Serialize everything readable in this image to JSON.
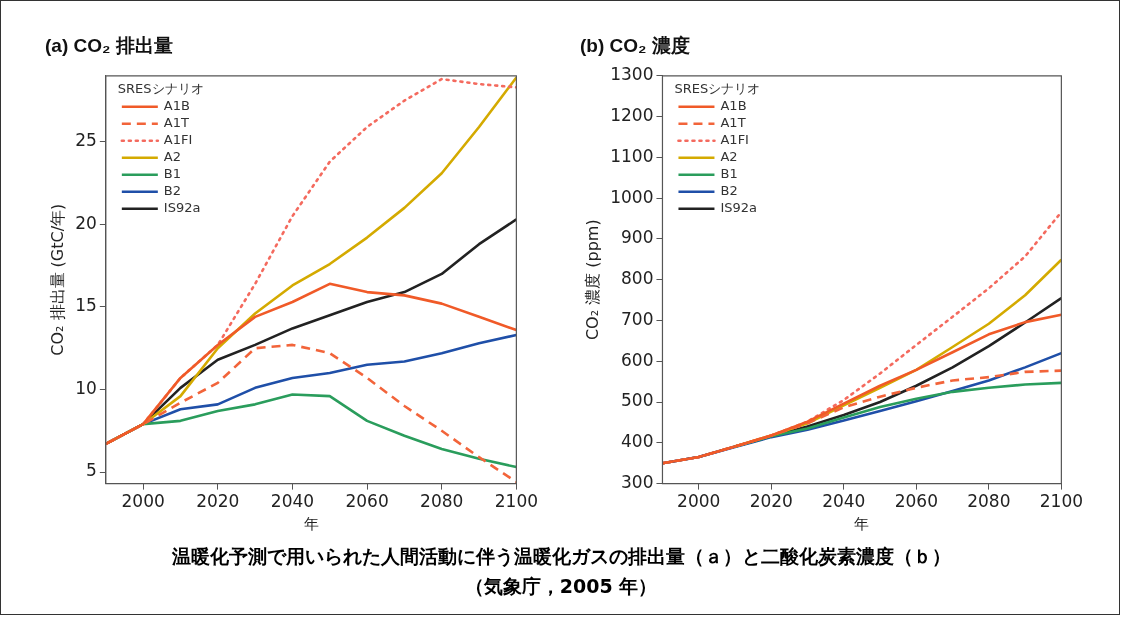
{
  "chart_data": [
    {
      "type": "line",
      "title": "(a) CO₂ 排出量",
      "xlabel": "年",
      "ylabel": "CO₂ 排出量 (GtC/年)",
      "legend_title": "SRESシナリオ",
      "legend": "top left",
      "grid": false,
      "marker": "none",
      "x": [
        1990,
        2000,
        2010,
        2020,
        2030,
        2040,
        2050,
        2060,
        2070,
        2080,
        2090,
        2100
      ],
      "xlim": [
        1990,
        2100
      ],
      "xticks": [
        2000,
        2020,
        2040,
        2060,
        2080,
        2100
      ],
      "ylim": [
        4.3,
        29
      ],
      "yticks": [
        5,
        10,
        15,
        20,
        25
      ],
      "series": [
        {
          "name": "A1B",
          "color": "#f05a28",
          "line_style": "solid",
          "values": [
            6.7,
            7.9,
            10.7,
            12.7,
            14.4,
            15.3,
            16.4,
            15.9,
            15.7,
            15.2,
            14.4,
            13.6
          ]
        },
        {
          "name": "A1T",
          "color": "#f2643a",
          "line_style": "dashed",
          "values": [
            6.7,
            7.9,
            9.2,
            10.4,
            12.5,
            12.7,
            12.2,
            10.7,
            9.0,
            7.5,
            5.9,
            4.4
          ]
        },
        {
          "name": "A1FI",
          "color": "#f46a5e",
          "line_style": "dotted",
          "values": [
            6.7,
            7.9,
            10.7,
            12.7,
            16.4,
            20.5,
            23.8,
            25.9,
            27.5,
            28.8,
            28.5,
            28.3
          ]
        },
        {
          "name": "A2",
          "color": "#d4aa00",
          "line_style": "solid",
          "values": [
            6.7,
            7.9,
            9.6,
            12.5,
            14.6,
            16.3,
            17.6,
            19.2,
            21.0,
            23.1,
            25.9,
            28.9
          ]
        },
        {
          "name": "B1",
          "color": "#2a9d5c",
          "line_style": "solid",
          "values": [
            6.7,
            7.9,
            8.1,
            8.7,
            9.1,
            9.7,
            9.6,
            8.1,
            7.2,
            6.4,
            5.8,
            5.3
          ]
        },
        {
          "name": "B2",
          "color": "#1f4fa8",
          "line_style": "solid",
          "values": [
            6.7,
            7.9,
            8.8,
            9.1,
            10.1,
            10.7,
            11.0,
            11.5,
            11.7,
            12.2,
            12.8,
            13.3
          ]
        },
        {
          "name": "IS92a",
          "color": "#222222",
          "line_style": "solid",
          "values": [
            6.7,
            7.9,
            10.1,
            11.8,
            12.7,
            13.7,
            14.5,
            15.3,
            15.9,
            17.0,
            18.8,
            20.3
          ]
        }
      ],
      "annotations": [
        "温暖化予測で用いられた人間活動に伴う温暖化ガスの排出量（ａ）と二酸化炭素濃度（ｂ）",
        "（気象庁，2005 年）"
      ]
    },
    {
      "type": "line",
      "title": "(b) CO₂ 濃度",
      "xlabel": "年",
      "ylabel": "CO₂ 濃度 (ppm)",
      "legend_title": "SRESシナリオ",
      "legend": "top left",
      "grid": false,
      "marker": "none",
      "x": [
        1990,
        2000,
        2010,
        2020,
        2030,
        2040,
        2050,
        2060,
        2070,
        2080,
        2090,
        2100
      ],
      "xlim": [
        1990,
        2100
      ],
      "xticks": [
        2000,
        2020,
        2040,
        2060,
        2080,
        2100
      ],
      "ylim": [
        300,
        1300
      ],
      "yticks": [
        300,
        400,
        500,
        600,
        700,
        800,
        900,
        1000,
        1100,
        1200,
        1300
      ],
      "series": [
        {
          "name": "A1B",
          "color": "#f05a28",
          "line_style": "solid",
          "values": [
            350,
            365,
            391,
            418,
            452,
            496,
            540,
            579,
            622,
            666,
            696,
            714
          ]
        },
        {
          "name": "A1T",
          "color": "#f2643a",
          "line_style": "dashed",
          "values": [
            350,
            365,
            391,
            418,
            448,
            487,
            513,
            535,
            553,
            561,
            574,
            577
          ]
        },
        {
          "name": "A1FI",
          "color": "#f46a5e",
          "line_style": "dotted",
          "values": [
            350,
            365,
            391,
            418,
            452,
            505,
            570,
            640,
            709,
            779,
            857,
            966
          ]
        },
        {
          "name": "A2",
          "color": "#d4aa00",
          "line_style": "solid",
          "values": [
            null,
            null,
            391,
            418,
            448,
            492,
            535,
            579,
            635,
            692,
            762,
            849
          ]
        },
        {
          "name": "B1",
          "color": "#2a9d5c",
          "line_style": "solid",
          "values": [
            null,
            null,
            391,
            416,
            435,
            462,
            488,
            508,
            525,
            535,
            543,
            547
          ]
        },
        {
          "name": "B2",
          "color": "#1f4fa8",
          "line_style": "solid",
          "values": [
            350,
            365,
            390,
            414,
            432,
            455,
            478,
            502,
            527,
            553,
            585,
            620
          ]
        },
        {
          "name": "IS92a",
          "color": "#222222",
          "line_style": "solid",
          "values": [
            350,
            365,
            391,
            416,
            440,
            468,
            500,
            540,
            585,
            637,
            695,
            755
          ]
        }
      ]
    }
  ]
}
